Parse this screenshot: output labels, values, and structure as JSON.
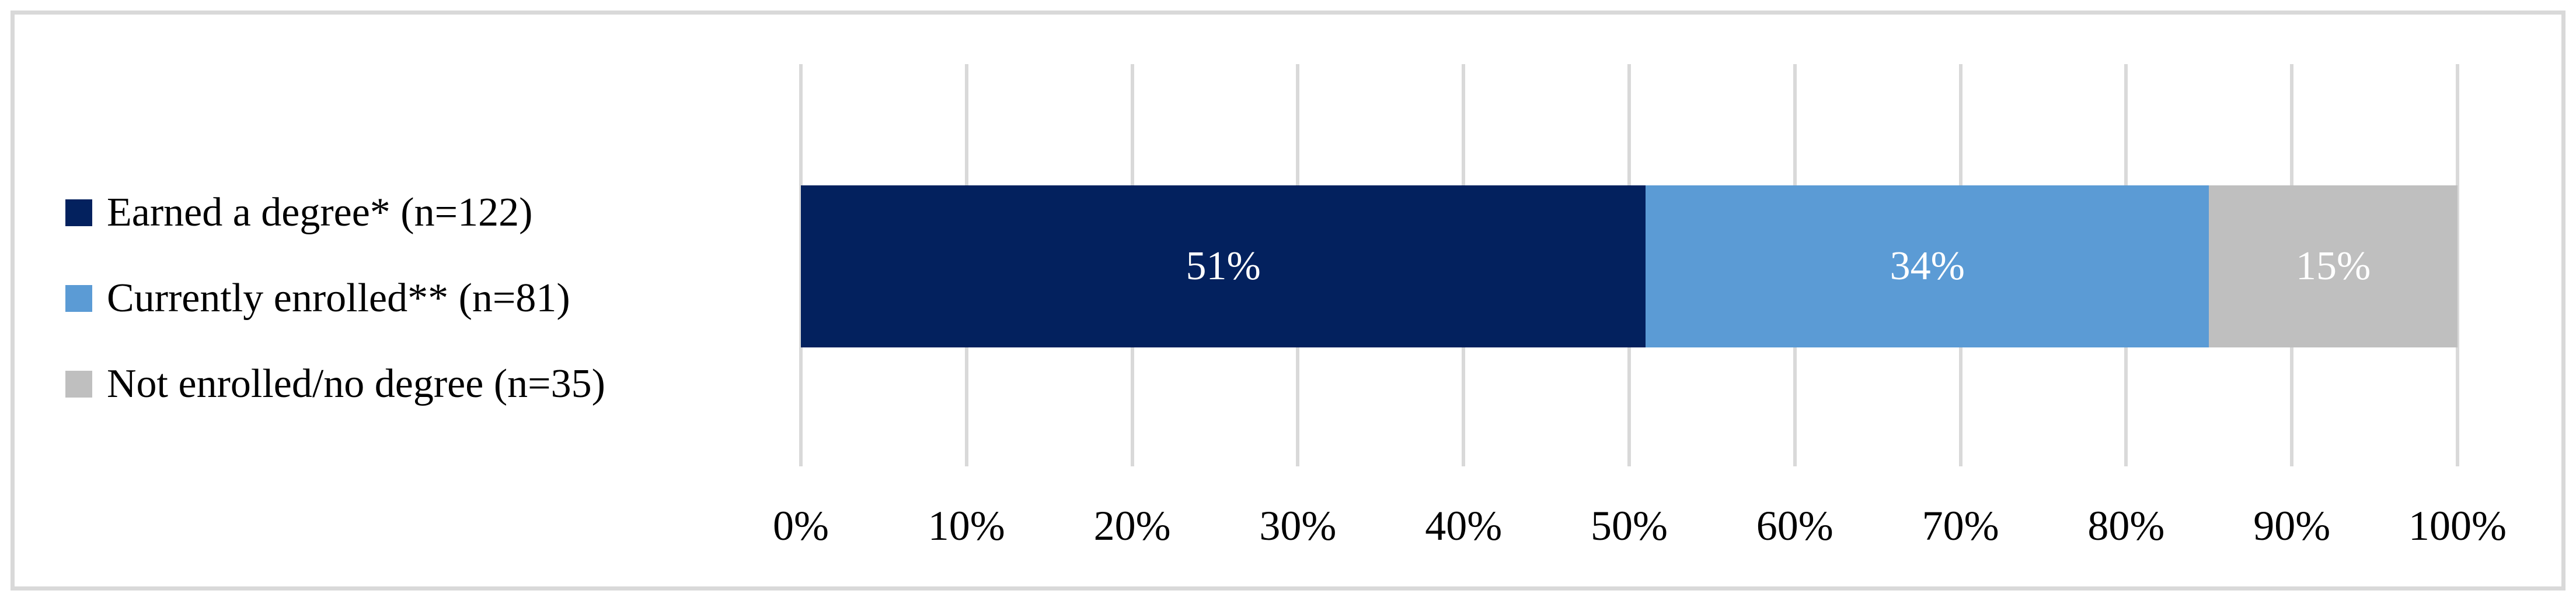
{
  "chart_data": {
    "type": "bar",
    "orientation": "horizontal",
    "stacked": true,
    "title": "",
    "xlabel": "",
    "ylabel": "",
    "xlim": [
      0,
      100
    ],
    "grid": true,
    "legend_position": "left",
    "series": [
      {
        "name": "Earned a degree* (n=122)",
        "value": 51,
        "label": "51%",
        "color": "#03215E"
      },
      {
        "name": "Currently enrolled** (n=81)",
        "value": 34,
        "label": "34%",
        "color": "#5B9BD5"
      },
      {
        "name": "Not enrolled/no degree (n=35)",
        "value": 15,
        "label": "15%",
        "color": "#BFBFBF"
      }
    ],
    "x_axis": {
      "ticks": [
        "0%",
        "10%",
        "20%",
        "30%",
        "40%",
        "50%",
        "60%",
        "70%",
        "80%",
        "90%",
        "100%"
      ]
    }
  },
  "legend": {
    "items": [
      {
        "label": "Earned a degree* (n=122)",
        "color": "#03215E"
      },
      {
        "label": "Currently enrolled** (n=81)",
        "color": "#5B9BD5"
      },
      {
        "label": "Not enrolled/no degree (n=35)",
        "color": "#BFBFBF"
      }
    ]
  },
  "colors": {
    "navy": "#03215E",
    "blue": "#5B9BD5",
    "gray": "#BFBFBF",
    "gridline": "#D9D9D9",
    "frame_border": "#D9D9D9",
    "label_text_on_bar": "#FFFFFF",
    "axis_text": "#000000"
  }
}
